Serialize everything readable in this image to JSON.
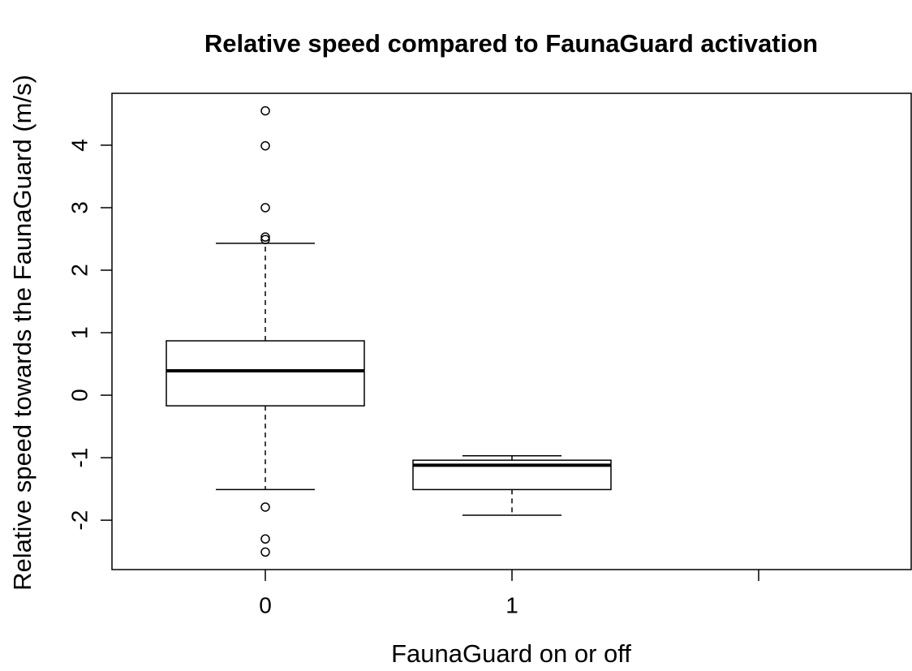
{
  "chart_data": {
    "type": "box",
    "title": "Relative speed compared to FaunaGuard activation",
    "x_label": "FaunaGuard on or off",
    "y_label": "Relative speed towards the FaunaGuard (m/s)",
    "categories": [
      "0",
      "1",
      null
    ],
    "boxes": [
      {
        "whisker_low": -1.51,
        "q1": -0.17,
        "median": 0.39,
        "q3": 0.87,
        "whisker_high": 2.43,
        "outliers": [
          4.55,
          3.99,
          3.0,
          2.53,
          2.49,
          -1.79,
          -2.3,
          -2.51
        ]
      },
      {
        "whisker_low": -1.92,
        "q1": -1.51,
        "median": -1.12,
        "q3": -1.04,
        "whisker_high": -0.97,
        "outliers": []
      },
      null
    ],
    "ylim": [
      -2.79,
      4.83
    ],
    "yticks": [
      -2,
      -1,
      0,
      1,
      2,
      3,
      4
    ],
    "color": "#000000"
  }
}
